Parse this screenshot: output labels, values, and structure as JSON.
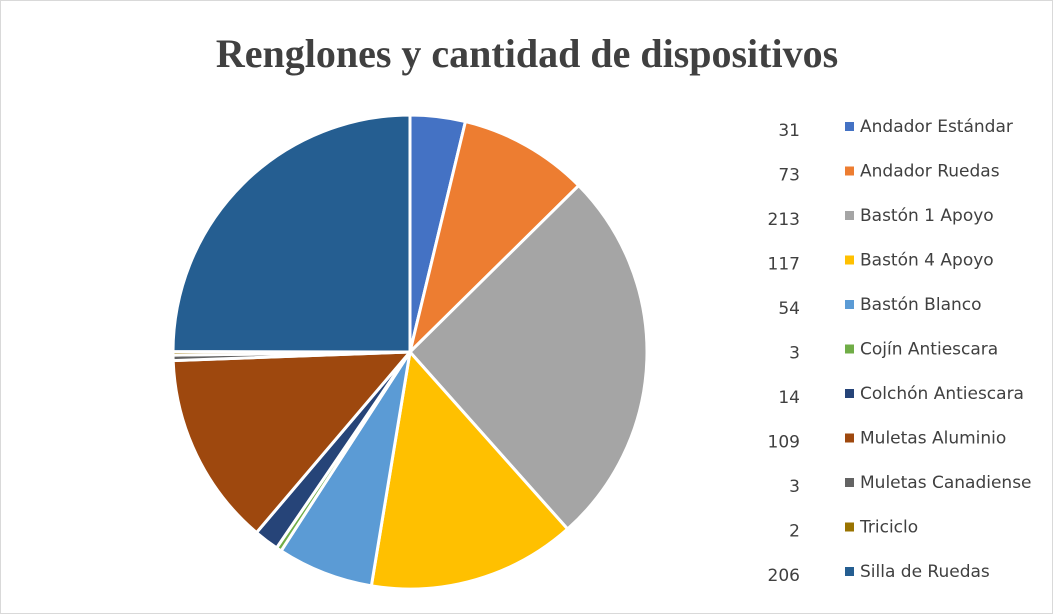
{
  "chart_data": {
    "type": "pie",
    "title": "Renglones y cantidad de dispositivos",
    "categories": [
      "Andador Estándar",
      "Andador Ruedas",
      "Bastón 1 Apoyo",
      "Bastón 4 Apoyo",
      "Bastón Blanco",
      "Cojín Antiescara",
      "Colchón Antiescara",
      "Muletas Aluminio",
      "Muletas Canadiense",
      "Triciclo",
      "Silla de Ruedas"
    ],
    "values": [
      31,
      73,
      213,
      117,
      54,
      3,
      14,
      109,
      3,
      2,
      206
    ],
    "colors": [
      "#4472c4",
      "#ed7d31",
      "#a5a5a5",
      "#ffc000",
      "#5b9bd5",
      "#70ad47",
      "#264478",
      "#9e480e",
      "#636363",
      "#997300",
      "#255e91"
    ],
    "legend": "right"
  }
}
